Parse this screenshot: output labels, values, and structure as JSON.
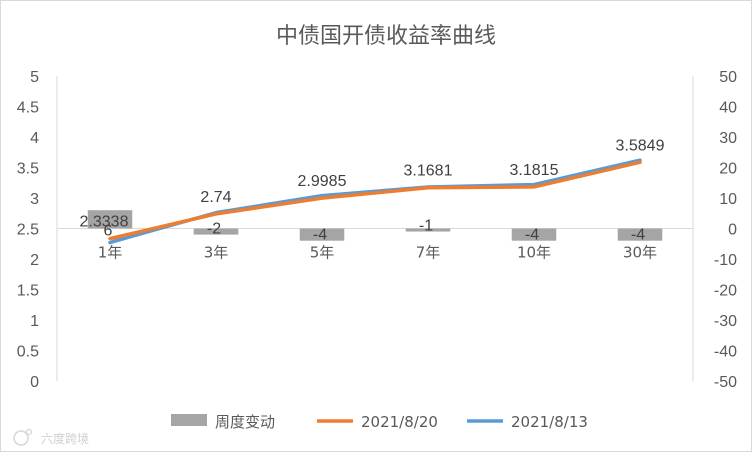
{
  "chart_data": {
    "type": "bar+line",
    "title": "中债国开债收益率曲线",
    "categories": [
      "1年",
      "3年",
      "5年",
      "7年",
      "10年",
      "30年"
    ],
    "y_left": {
      "min": 0,
      "max": 5,
      "ticks": [
        "0",
        "0.5",
        "1",
        "1.5",
        "2",
        "2.5",
        "3",
        "3.5",
        "4",
        "4.5",
        "5"
      ]
    },
    "y_right": {
      "min": -50,
      "max": 50,
      "ticks": [
        "-50",
        "-40",
        "-30",
        "-20",
        "-10",
        "0",
        "10",
        "20",
        "30",
        "40",
        "50"
      ]
    },
    "series": [
      {
        "name": "周度变动",
        "kind": "bar",
        "axis": "right",
        "color": "#a5a5a5",
        "values": [
          6,
          -2,
          -4,
          -1,
          -4,
          -4
        ],
        "labels": [
          "6",
          "-2",
          "-4",
          "-1",
          "-4",
          "-4"
        ]
      },
      {
        "name": "2021/8/20",
        "kind": "line",
        "axis": "left",
        "color": "#ed7d31",
        "values": [
          2.3338,
          2.74,
          2.9985,
          3.1681,
          3.1815,
          3.5849
        ],
        "labels": [
          "2.3338",
          "2.74",
          "2.9985",
          "3.1681",
          "3.1815",
          "3.5849"
        ]
      },
      {
        "name": "2021/8/13",
        "kind": "line",
        "axis": "left",
        "color": "#5b9bd5",
        "values": [
          2.27,
          2.76,
          3.04,
          3.18,
          3.22,
          3.62
        ]
      }
    ],
    "legend_position": "bottom",
    "grid": false
  },
  "watermark": "六度跨境"
}
